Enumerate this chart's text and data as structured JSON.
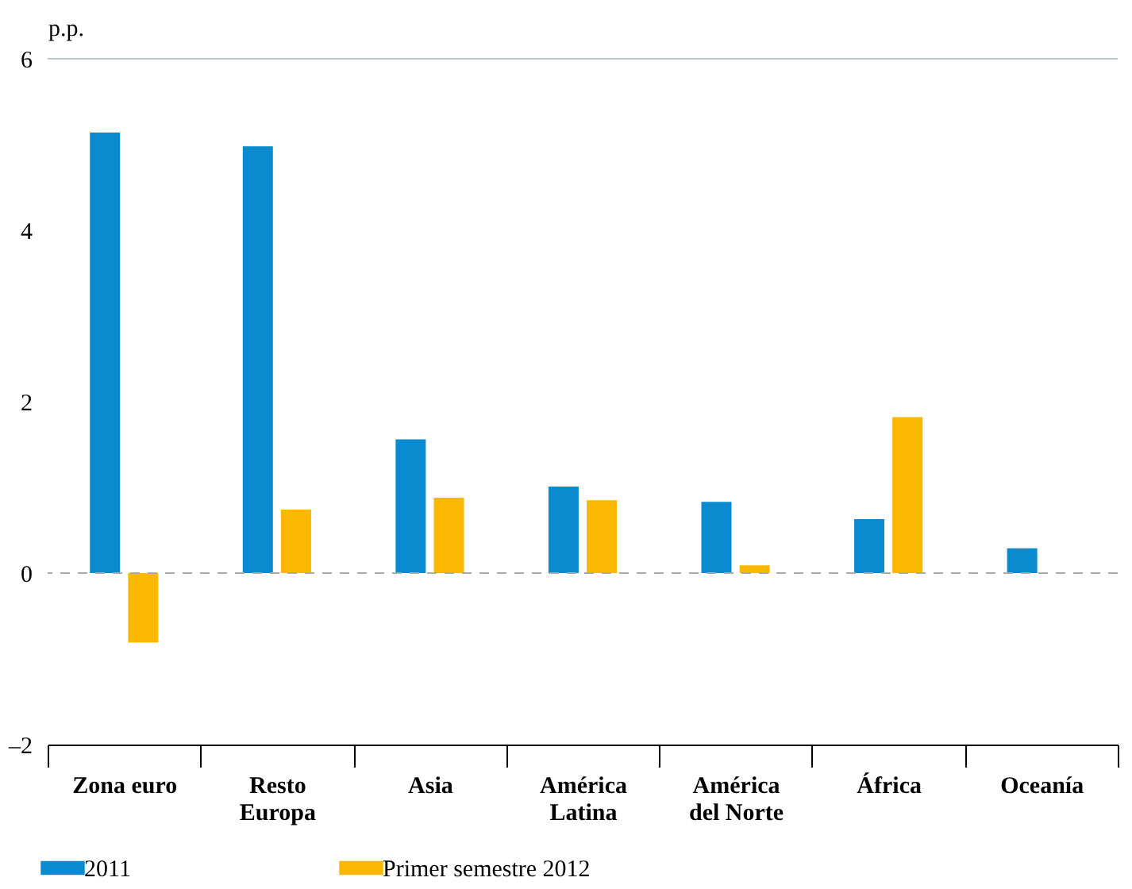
{
  "chart_data": {
    "type": "bar",
    "ylabel": "p.p.",
    "categories": [
      "Zona euro",
      "Resto\nEuropa",
      "Asia",
      "América\nLatina",
      "América\ndel Norte",
      "África",
      "Oceanía"
    ],
    "series": [
      {
        "name": "2011",
        "color": "#0a8bd0",
        "values": [
          5.14,
          4.98,
          1.56,
          1.01,
          0.83,
          0.63,
          0.29
        ]
      },
      {
        "name": "Primer semestre 2012",
        "color": "#fbb800",
        "values": [
          -0.81,
          0.74,
          0.88,
          0.85,
          0.09,
          1.82,
          0
        ]
      }
    ],
    "ylim": [
      -2,
      6
    ],
    "yticks": [
      {
        "value": -2,
        "label": "–2"
      },
      0,
      2,
      4,
      6
    ],
    "grid": false,
    "legend": "bottom",
    "ref_lines": [
      {
        "axis": "y",
        "value": 0,
        "color": "#aaaaaa",
        "line_style": "dashed"
      },
      {
        "axis": "y",
        "value": 6,
        "color": "#b8c8d0",
        "line_style": "solid"
      }
    ]
  }
}
